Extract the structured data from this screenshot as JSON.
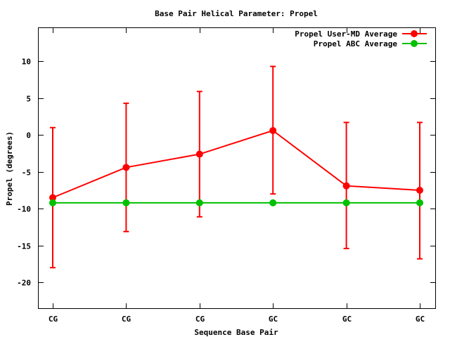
{
  "chart_data": {
    "type": "line",
    "title": "Base Pair Helical Parameter: Propel",
    "xlabel": "Sequence Base Pair",
    "ylabel": "Propel (degrees)",
    "categories": [
      "CG",
      "CG",
      "CG",
      "GC",
      "GC",
      "GC"
    ],
    "ylim": [
      -23.5,
      14.5
    ],
    "yticks": [
      10,
      5,
      0,
      -5,
      -10,
      -15,
      -20
    ],
    "grid": false,
    "legend_position": "top-right",
    "series": [
      {
        "name": "Propel User-MD Average",
        "color": "#ff0000",
        "values": [
          -8.5,
          -4.4,
          -2.6,
          0.6,
          -6.9,
          -7.5
        ],
        "error_low": [
          -18.0,
          -13.1,
          -11.1,
          -8.0,
          -15.4,
          -16.8
        ],
        "error_high": [
          1.0,
          4.3,
          5.9,
          9.3,
          1.7,
          1.7
        ]
      },
      {
        "name": "Propel ABC Average",
        "color": "#00c000",
        "values": [
          -9.2,
          -9.2,
          -9.2,
          -9.2,
          -9.2,
          -9.2
        ]
      }
    ]
  }
}
